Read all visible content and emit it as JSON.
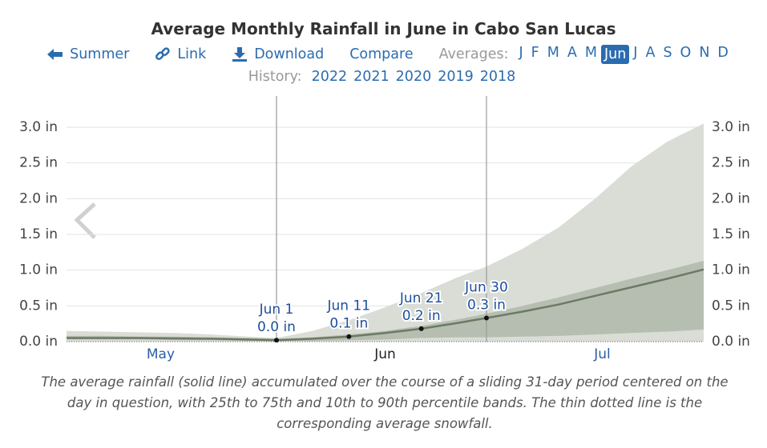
{
  "title": "Average Monthly Rainfall in June in Cabo San Lucas",
  "nav": {
    "back": "Summer",
    "link": "Link",
    "download": "Download",
    "compare": "Compare",
    "averages_label": "Averages:",
    "months": [
      "J",
      "F",
      "M",
      "A",
      "M",
      "Jun",
      "J",
      "A",
      "S",
      "O",
      "N",
      "D"
    ],
    "selected": 5,
    "history_label": "History:",
    "years": [
      "2022",
      "2021",
      "2020",
      "2019",
      "2018"
    ]
  },
  "chart_data": {
    "type": "band-line",
    "x": [
      123,
      128,
      133,
      138,
      143,
      148,
      152,
      157,
      162,
      167,
      172,
      177,
      181,
      186,
      191,
      196,
      201,
      206,
      211
    ],
    "xlim": [
      123,
      211
    ],
    "xticks": [
      {
        "value": 136,
        "label": "May"
      },
      {
        "value": 167,
        "label": "Jun"
      },
      {
        "value": 197,
        "label": "Jul"
      }
    ],
    "selected_xtick": 1,
    "ylim": [
      0,
      3
    ],
    "yticks": [
      {
        "value": 0,
        "label": "0.0 in"
      },
      {
        "value": 0.5,
        "label": "0.5 in"
      },
      {
        "value": 1,
        "label": "1.0 in"
      },
      {
        "value": 1.5,
        "label": "1.5 in"
      },
      {
        "value": 2,
        "label": "2.0 in"
      },
      {
        "value": 2.5,
        "label": "2.5 in"
      },
      {
        "value": 3,
        "label": "3.0 in"
      }
    ],
    "grid": true,
    "bands": [
      {
        "color": "#d9ddd6",
        "lower": [
          0,
          0,
          0,
          0,
          0,
          0,
          0,
          0,
          0,
          0,
          0,
          0,
          0,
          0,
          0,
          0,
          0,
          0,
          0
        ],
        "upper": [
          0.15,
          0.14,
          0.13,
          0.12,
          0.1,
          0.07,
          0.05,
          0.15,
          0.3,
          0.48,
          0.68,
          0.9,
          1.05,
          1.3,
          1.6,
          2.0,
          2.45,
          2.8,
          3.05
        ]
      },
      {
        "color": "#b6beb1",
        "lower": [
          0.03,
          0.03,
          0.03,
          0.02,
          0.02,
          0.01,
          0.01,
          0.01,
          0.02,
          0.03,
          0.05,
          0.06,
          0.06,
          0.07,
          0.08,
          0.1,
          0.12,
          0.14,
          0.17
        ],
        "upper": [
          0.08,
          0.08,
          0.07,
          0.07,
          0.06,
          0.05,
          0.04,
          0.06,
          0.1,
          0.15,
          0.22,
          0.31,
          0.39,
          0.5,
          0.62,
          0.75,
          0.88,
          1.0,
          1.13
        ]
      }
    ],
    "values": [
      0.05,
      0.05,
      0.05,
      0.045,
      0.04,
      0.03,
      0.02,
      0.04,
      0.07,
      0.12,
      0.18,
      0.26,
      0.33,
      0.42,
      0.52,
      0.64,
      0.76,
      0.88,
      1.01
    ],
    "color": "#6c7a64",
    "snowfall": [
      0,
      0,
      0,
      0,
      0,
      0,
      0,
      0,
      0,
      0,
      0,
      0,
      0,
      0,
      0,
      0,
      0,
      0,
      0
    ],
    "annotations": [
      {
        "x": 152,
        "value": 0.02,
        "label": "Jun 1",
        "value_label": "0.0 in"
      },
      {
        "x": 162,
        "value": 0.07,
        "label": "Jun 11",
        "value_label": "0.1 in"
      },
      {
        "x": 172,
        "value": 0.18,
        "label": "Jun 21",
        "value_label": "0.2 in"
      },
      {
        "x": 181,
        "value": 0.33,
        "label": "Jun 30",
        "value_label": "0.3 in"
      }
    ]
  },
  "caption": "The average rainfall (solid line) accumulated over the course of a sliding 31-day period centered on the day in question, with 25th to 75th and 10th to 90th percentile bands. The thin dotted line is the corresponding average snowfall."
}
